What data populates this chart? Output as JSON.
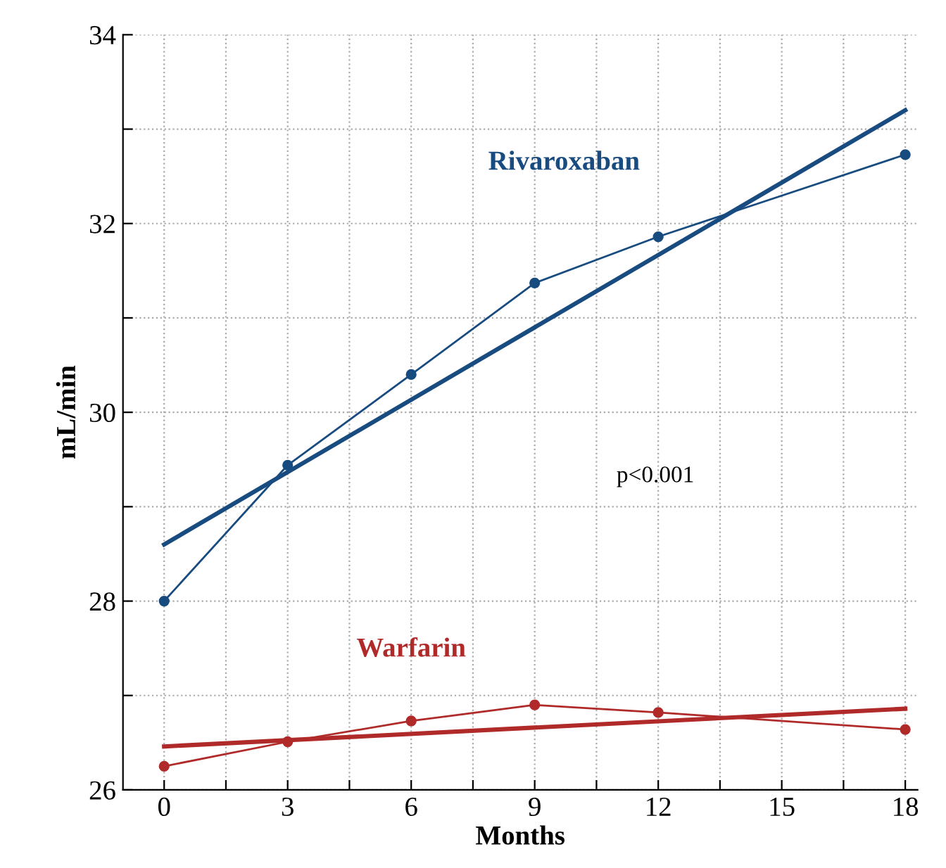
{
  "chart_data": {
    "type": "line",
    "xlabel": "Months",
    "ylabel": "mL/min",
    "xlim": [
      -1,
      18.3
    ],
    "ylim": [
      26,
      34
    ],
    "xticks": [
      0,
      {
        "value": 1.5,
        "label": null
      },
      3,
      {
        "value": 4.5,
        "label": null
      },
      6,
      {
        "value": 7.5,
        "label": null
      },
      9,
      {
        "value": 10.5,
        "label": null
      },
      12,
      {
        "value": 13.5,
        "label": null
      },
      15,
      {
        "value": 16.5,
        "label": null
      },
      18
    ],
    "yticks": [
      26,
      {
        "value": 27,
        "label": null
      },
      28,
      {
        "value": 29,
        "label": null
      },
      30,
      {
        "value": 31,
        "label": null
      },
      32,
      {
        "value": 33,
        "label": null
      },
      34
    ],
    "grid": true,
    "marker": "circle",
    "line_style": "solid",
    "series": [
      {
        "name": "Rivaroxaban",
        "color": "#184c80",
        "x": [
          0,
          3,
          6,
          9,
          12,
          18
        ],
        "values": [
          28.0,
          29.44,
          30.4,
          31.37,
          31.86,
          32.73
        ]
      },
      {
        "name": "Warfarin",
        "color": "#b02a2a",
        "x": [
          0,
          3,
          6,
          9,
          12,
          18
        ],
        "values": [
          26.25,
          26.51,
          26.73,
          26.9,
          26.82,
          26.64
        ]
      },
      {
        "type": "line",
        "color": "#184c80",
        "x": [
          0,
          18
        ],
        "values": [
          28.6,
          33.2
        ],
        "marker": "none"
      },
      {
        "type": "line",
        "color": "#b02a2a",
        "x": [
          0,
          18
        ],
        "values": [
          26.46,
          26.86
        ],
        "marker": "none"
      }
    ],
    "annotations": [
      "p<0.001"
    ]
  }
}
